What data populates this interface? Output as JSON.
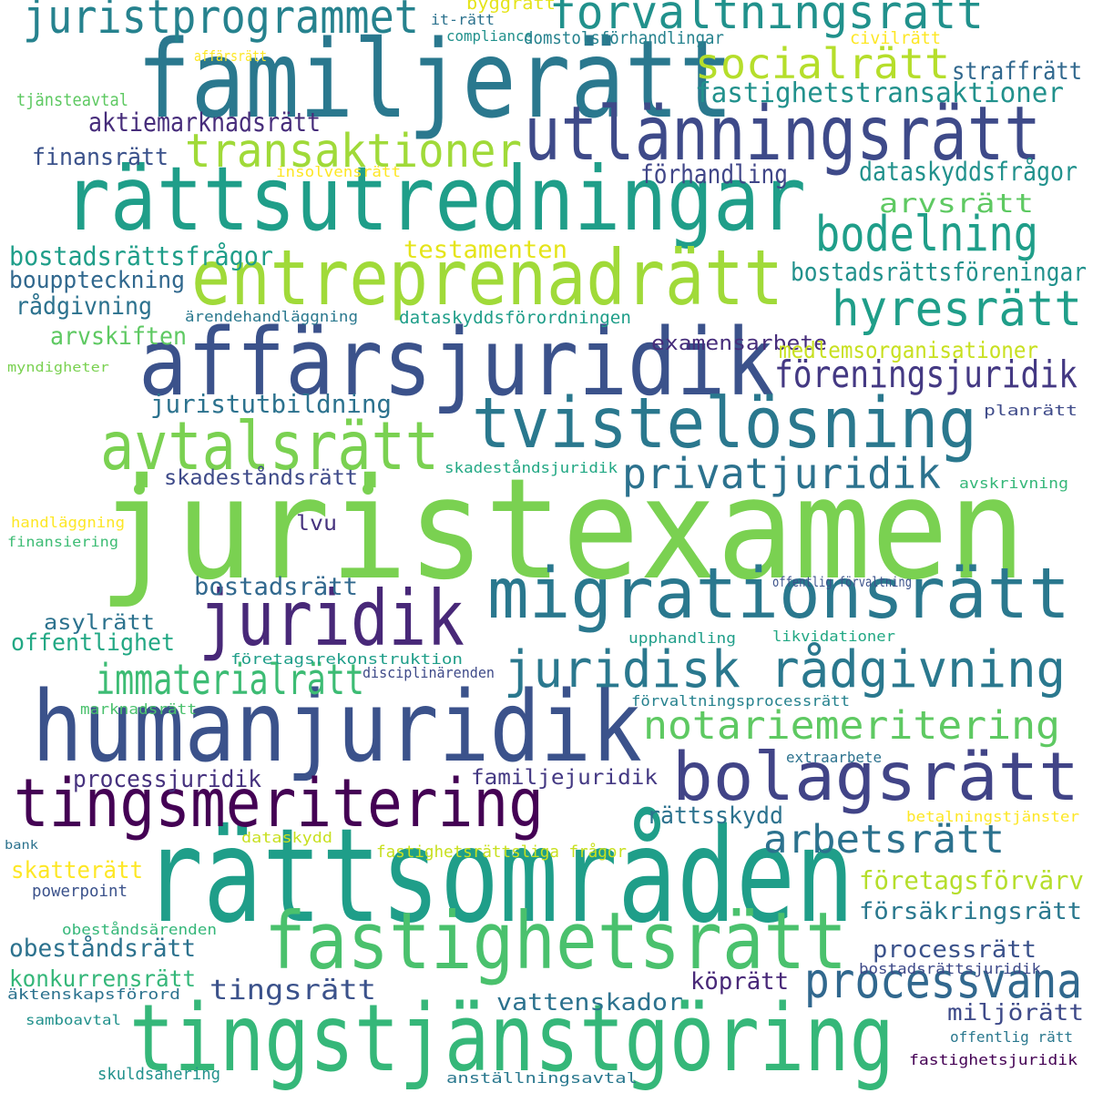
{
  "palette": {
    "purple_dark": "#440154",
    "indigo": "#3b528b",
    "blue": "#31688e",
    "teal": "#26828e",
    "teal_green": "#1f9e89",
    "green": "#35b779",
    "light_green": "#6ece58",
    "lime": "#b5de2b",
    "yellow": "#fde725"
  },
  "words": [
    {
      "text": "juristexamen",
      "color": "#7ad151"
    },
    {
      "text": "rättsområden",
      "color": "#1f9e89"
    },
    {
      "text": "familjerätt",
      "color": "#2a788e"
    },
    {
      "text": "affärsjuridik",
      "color": "#3b528b"
    },
    {
      "text": "rättsutredningar",
      "color": "#1f9e89"
    },
    {
      "text": "humanjuridik",
      "color": "#3b528b"
    },
    {
      "text": "tingstjänstgöring",
      "color": "#35b779"
    },
    {
      "text": "entreprenadrätt",
      "color": "#a0da39"
    },
    {
      "text": "migrationsrätt",
      "color": "#2a788e"
    },
    {
      "text": "utlänningsrätt",
      "color": "#3e4a89"
    },
    {
      "text": "tvistelösning",
      "color": "#2a788e"
    },
    {
      "text": "fastighetsrätt",
      "color": "#4ac16d"
    },
    {
      "text": "tingsmeritering",
      "color": "#440154"
    },
    {
      "text": "juridik",
      "color": "#482878"
    },
    {
      "text": "bolagsrätt",
      "color": "#414487"
    },
    {
      "text": "avtalsrätt",
      "color": "#7ad151"
    },
    {
      "text": "förvaltningsrätt",
      "color": "#21918c"
    },
    {
      "text": "juristprogrammet",
      "color": "#26828e"
    },
    {
      "text": "juridisk rådgivning",
      "color": "#2a788e"
    },
    {
      "text": "socialrätt",
      "color": "#b5de2b"
    },
    {
      "text": "transaktioner",
      "color": "#a0da39"
    },
    {
      "text": "hyresrätt",
      "color": "#1f9e89"
    },
    {
      "text": "bodelning",
      "color": "#1f9e89"
    },
    {
      "text": "notariemeritering",
      "color": "#5ec962"
    },
    {
      "text": "processvana",
      "color": "#31688e"
    },
    {
      "text": "privatjuridik",
      "color": "#2c728e"
    },
    {
      "text": "immaterialrätt",
      "color": "#3dbc74"
    },
    {
      "text": "arbetsrätt",
      "color": "#2c728e"
    },
    {
      "text": "föreningsjuridik",
      "color": "#443983"
    },
    {
      "text": "fastighetstransaktioner",
      "color": "#21918c"
    },
    {
      "text": "straffrätt",
      "color": "#31688e"
    },
    {
      "text": "aktiemarknadsrätt",
      "color": "#472d7b"
    },
    {
      "text": "finansrätt",
      "color": "#3b528b"
    },
    {
      "text": "förhandling",
      "color": "#404688"
    },
    {
      "text": "dataskyddsfrågor",
      "color": "#21918c"
    },
    {
      "text": "arvsrätt",
      "color": "#5ec962"
    },
    {
      "text": "testamenten",
      "color": "#e5e419"
    },
    {
      "text": "bostadsrättsfrågor",
      "color": "#1f9e89"
    },
    {
      "text": "bouppteckning",
      "color": "#31688e"
    },
    {
      "text": "rådgivning",
      "color": "#2c728e"
    },
    {
      "text": "arvskiften",
      "color": "#5ec962"
    },
    {
      "text": "bostadsrättsföreningar",
      "color": "#21918c"
    },
    {
      "text": "examensarbete",
      "color": "#472d7b"
    },
    {
      "text": "medlemsorganisationer",
      "color": "#c8e020"
    },
    {
      "text": "juristutbildning",
      "color": "#2c728e"
    },
    {
      "text": "skadeståndsrätt",
      "color": "#3e4a89"
    },
    {
      "text": "lvu",
      "color": "#46327e"
    },
    {
      "text": "bostadsrätt",
      "color": "#31688e"
    },
    {
      "text": "asylrätt",
      "color": "#2c728e"
    },
    {
      "text": "offentlighet",
      "color": "#22a884"
    },
    {
      "text": "processjuridik",
      "color": "#46327e"
    },
    {
      "text": "familjejuridik",
      "color": "#443983"
    },
    {
      "text": "rättsskydd",
      "color": "#2c728e"
    },
    {
      "text": "skatterätt",
      "color": "#fde725"
    },
    {
      "text": "företagsförvärv",
      "color": "#b5de2b"
    },
    {
      "text": "försäkringsrätt",
      "color": "#2a788e"
    },
    {
      "text": "obeståndsrätt",
      "color": "#2c728e"
    },
    {
      "text": "processrätt",
      "color": "#3b528b"
    },
    {
      "text": "konkurrensrätt",
      "color": "#35b779"
    },
    {
      "text": "tingsrätt",
      "color": "#3b528b"
    },
    {
      "text": "köprätt",
      "color": "#482878"
    },
    {
      "text": "vattenskador",
      "color": "#2c728e"
    },
    {
      "text": "miljörätt",
      "color": "#3e4a89"
    },
    {
      "text": "byggrätt",
      "color": "#e5e419"
    },
    {
      "text": "it-rätt",
      "color": "#2c728e"
    },
    {
      "text": "compliance",
      "color": "#21918c"
    },
    {
      "text": "domstolsförhandlingar",
      "color": "#26828e"
    },
    {
      "text": "civilrätt",
      "color": "#fde725"
    },
    {
      "text": "affärsrätt",
      "color": "#fde725"
    },
    {
      "text": "tjänsteavtal",
      "color": "#5ec962"
    },
    {
      "text": "insolvensrätt",
      "color": "#fde725"
    },
    {
      "text": "ärendehandläggning",
      "color": "#2a788e"
    },
    {
      "text": "dataskyddsförordningen",
      "color": "#1f9e89"
    },
    {
      "text": "myndigheter",
      "color": "#7ad151"
    },
    {
      "text": "planrätt",
      "color": "#3e4a89"
    },
    {
      "text": "skadeståndsjuridik",
      "color": "#22a884"
    },
    {
      "text": "avskrivning",
      "color": "#35b779"
    },
    {
      "text": "handläggning",
      "color": "#fde725"
    },
    {
      "text": "finansiering",
      "color": "#3dbc74"
    },
    {
      "text": "offentlig förvaltning",
      "color": "#3b528b"
    },
    {
      "text": "upphandling",
      "color": "#1f9e89"
    },
    {
      "text": "likvidationer",
      "color": "#22a884"
    },
    {
      "text": "företagsrekonstruktion",
      "color": "#1f9e89"
    },
    {
      "text": "disciplinärenden",
      "color": "#3e4a89"
    },
    {
      "text": "marknadsrätt",
      "color": "#4ac16d"
    },
    {
      "text": "förvaltningsprocessrätt",
      "color": "#26828e"
    },
    {
      "text": "extraarbete",
      "color": "#2c728e"
    },
    {
      "text": "dataskydd",
      "color": "#c8e020"
    },
    {
      "text": "betalningstjänster",
      "color": "#fde725"
    },
    {
      "text": "bank",
      "color": "#2c728e"
    },
    {
      "text": "fastighetsrättsliga frågor",
      "color": "#c8e020"
    },
    {
      "text": "powerpoint",
      "color": "#3b528b"
    },
    {
      "text": "obeståndsärenden",
      "color": "#35b779"
    },
    {
      "text": "bostadsrättsjuridik",
      "color": "#3e4a89"
    },
    {
      "text": "äktenskapsförord",
      "color": "#2c728e"
    },
    {
      "text": "samboavtal",
      "color": "#21918c"
    },
    {
      "text": "offentlig rätt",
      "color": "#2a788e"
    },
    {
      "text": "skuldsanering",
      "color": "#21918c"
    },
    {
      "text": "anställningsavtal",
      "color": "#2a788e"
    },
    {
      "text": "fastighetsjuridik",
      "color": "#440154"
    }
  ],
  "dots": [
    {
      "color": "#7ad151"
    },
    {
      "color": "#7ad151"
    }
  ]
}
